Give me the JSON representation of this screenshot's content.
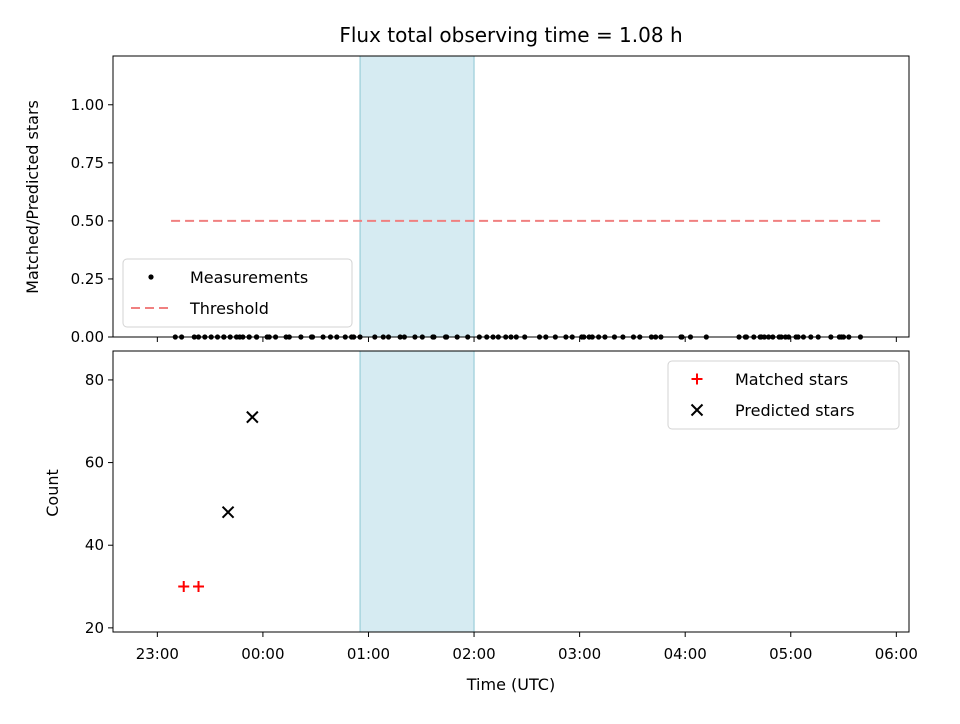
{
  "chart_data": [
    {
      "type": "scatter",
      "title": "Flux total observing time = 1.08 h",
      "xlabel": "",
      "ylabel": "Matched/Predicted stars",
      "x_unit": "hours relative to 00:00 UTC",
      "xlim": [
        -1.42,
        6.12
      ],
      "ylim": [
        0.0,
        1.21
      ],
      "yticks": [
        "0.00",
        "0.25",
        "0.50",
        "0.75",
        "1.00"
      ],
      "legend_position": "lower-left",
      "highlight_span": [
        0.92,
        2.0
      ],
      "threshold": {
        "name": "Threshold",
        "y": 0.5,
        "x_range": [
          -0.87,
          5.88
        ],
        "color": "#f08080"
      },
      "series": [
        {
          "name": "Measurements",
          "color": "#000000",
          "x": [
            -0.83,
            -0.77,
            -0.65,
            -0.61,
            -0.55,
            -0.49,
            -0.43,
            -0.37,
            -0.31,
            -0.25,
            -0.19,
            -0.13,
            -0.06,
            -0.37,
            -0.22,
            -0.13,
            -0.06,
            0.04,
            0.06,
            0.12,
            0.22,
            0.25,
            0.46,
            0.36,
            0.47,
            0.57,
            0.64,
            0.7,
            0.78,
            0.84,
            0.92,
            0.86,
            1.06,
            1.14,
            1.19,
            1.3,
            1.34,
            1.44,
            1.51,
            1.61,
            1.62,
            1.73,
            1.74,
            1.84,
            1.94,
            2.05,
            2.12,
            2.18,
            2.23,
            2.3,
            2.35,
            2.4,
            2.48,
            2.62,
            2.68,
            2.77,
            2.87,
            2.93,
            3.02,
            3.09,
            3.18,
            3.24,
            3.33,
            3.41,
            3.51,
            3.57,
            3.68,
            3.72,
            3.77,
            3.97,
            4.05,
            4.2,
            4.57,
            4.65,
            4.71,
            4.79,
            4.89,
            4.95,
            5.05,
            5.12,
            5.19,
            5.26,
            5.38,
            5.5,
            5.55,
            5.66,
            5.48,
            5.46,
            5.07,
            4.98,
            4.91,
            4.83,
            4.75,
            4.72,
            4.58,
            4.51,
            3.96,
            3.12,
            3.04
          ],
          "y": [
            0.0,
            0.0,
            0.0,
            0.0,
            0.0,
            0.0,
            0.0,
            0.0,
            0.0,
            0.0,
            0.0,
            0.0,
            0.0,
            0.0,
            0.0,
            0.0,
            0.0,
            0.0,
            0.0,
            0.0,
            0.0,
            0.0,
            0.0,
            0.0,
            0.0,
            0.0,
            0.0,
            0.0,
            0.0,
            0.0,
            0.0,
            0.0,
            0.0,
            0.0,
            0.0,
            0.0,
            0.0,
            0.0,
            0.0,
            0.0,
            0.0,
            0.0,
            0.0,
            0.0,
            0.0,
            0.0,
            0.0,
            0.0,
            0.0,
            0.0,
            0.0,
            0.0,
            0.0,
            0.0,
            0.0,
            0.0,
            0.0,
            0.0,
            0.0,
            0.0,
            0.0,
            0.0,
            0.0,
            0.0,
            0.0,
            0.0,
            0.0,
            0.0,
            0.0,
            0.0,
            0.0,
            0.0,
            0.0,
            0.0,
            0.0,
            0.0,
            0.0,
            0.0,
            0.0,
            0.0,
            0.0,
            0.0,
            0.0,
            0.0,
            0.0,
            0.0,
            0.0,
            0.0,
            0.0,
            0.0,
            0.0,
            0.0,
            0.0,
            0.0,
            0.0,
            0.0,
            0.0,
            0.0,
            0.0
          ]
        }
      ]
    },
    {
      "type": "scatter",
      "title": "",
      "xlabel": "Time (UTC)",
      "ylabel": "Count",
      "x_unit": "hours relative to 00:00 UTC",
      "xlim": [
        -1.42,
        6.12
      ],
      "ylim": [
        19,
        87
      ],
      "yticks": [
        "20",
        "40",
        "60",
        "80"
      ],
      "xticks": [
        "23:00",
        "00:00",
        "01:00",
        "02:00",
        "03:00",
        "04:00",
        "05:00",
        "06:00"
      ],
      "legend_position": "top-right",
      "highlight_span": [
        0.92,
        2.0
      ],
      "series": [
        {
          "name": "Matched stars",
          "color": "#ff0000",
          "marker": "+",
          "x": [
            -0.75,
            -0.61
          ],
          "y": [
            30,
            30
          ]
        },
        {
          "name": "Predicted stars",
          "color": "#000000",
          "marker": "x",
          "x": [
            -0.33,
            -0.1
          ],
          "y": [
            48,
            71
          ]
        }
      ]
    }
  ]
}
